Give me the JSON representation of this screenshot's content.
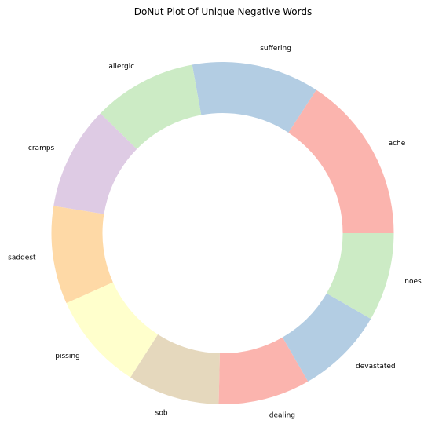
{
  "chart_data": {
    "type": "pie",
    "variant": "donut",
    "title": "DoNut Plot Of Unique Negative Words",
    "labels": [
      "ache",
      "suffering",
      "allergic",
      "cramps",
      "saddest",
      "pissing",
      "sob",
      "dealing",
      "devastated",
      "noes"
    ],
    "values": [
      14.0,
      10.7,
      8.7,
      8.7,
      8.2,
      8.2,
      7.7,
      7.7,
      7.4,
      7.4
    ],
    "colors": [
      "#fbb4ae",
      "#b3cde3",
      "#ccebc5",
      "#decbe4",
      "#fed9a6",
      "#ffffcc",
      "#e5d8bd",
      "#fbb4ae",
      "#b3cde3",
      "#ccebc5"
    ],
    "start_angle_deg": 0,
    "direction": "counterclockwise",
    "legend": "none"
  }
}
